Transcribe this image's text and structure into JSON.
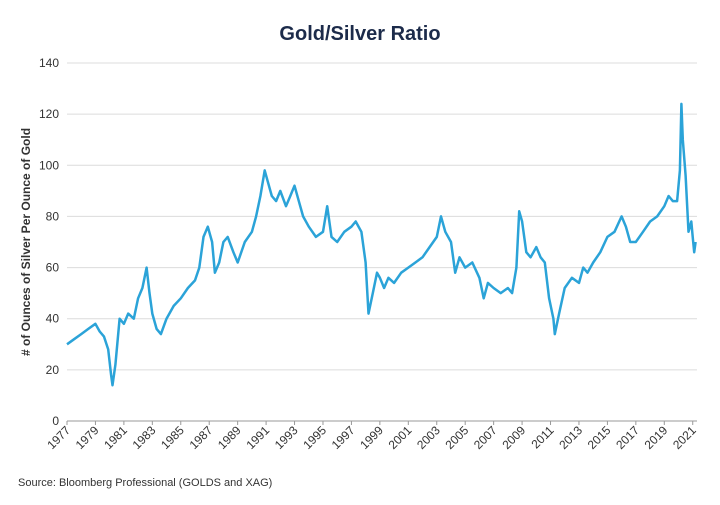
{
  "chart_data": {
    "type": "line",
    "title": "Gold/Silver Ratio",
    "y_label": "# of Ounces of Silver Per Ounce of Gold",
    "source": "Source: Bloomberg Professional (GOLDS and XAG)",
    "xlim": [
      1977,
      2021.3
    ],
    "xticks": [
      1977,
      1979,
      1981,
      1983,
      1985,
      1987,
      1989,
      1991,
      1993,
      1995,
      1997,
      1999,
      2001,
      2003,
      2005,
      2007,
      2009,
      2011,
      2013,
      2015,
      2017,
      2019,
      2021
    ],
    "ylim": [
      0,
      140
    ],
    "yticks": [
      0,
      20,
      40,
      60,
      80,
      100,
      120,
      140
    ],
    "grid": true,
    "series": [
      {
        "name": "Gold/Silver Ratio",
        "color": "#2ba3d8",
        "x": [
          1977.0,
          1977.5,
          1978.0,
          1978.5,
          1979.0,
          1979.3,
          1979.6,
          1979.9,
          1980.1,
          1980.2,
          1980.4,
          1980.7,
          1981.0,
          1981.3,
          1981.7,
          1982.0,
          1982.3,
          1982.6,
          1982.8,
          1983.0,
          1983.3,
          1983.6,
          1984.0,
          1984.5,
          1985.0,
          1985.5,
          1986.0,
          1986.3,
          1986.6,
          1986.9,
          1987.2,
          1987.4,
          1987.7,
          1988.0,
          1988.3,
          1988.7,
          1989.0,
          1989.5,
          1990.0,
          1990.3,
          1990.6,
          1990.9,
          1991.1,
          1991.4,
          1991.7,
          1992.0,
          1992.4,
          1992.7,
          1993.0,
          1993.3,
          1993.6,
          1994.0,
          1994.5,
          1995.0,
          1995.3,
          1995.6,
          1996.0,
          1996.5,
          1997.0,
          1997.3,
          1997.7,
          1998.0,
          1998.2,
          1998.5,
          1998.8,
          1999.0,
          1999.3,
          1999.6,
          2000.0,
          2000.5,
          2001.0,
          2001.5,
          2002.0,
          2002.5,
          2003.0,
          2003.3,
          2003.6,
          2004.0,
          2004.3,
          2004.6,
          2005.0,
          2005.5,
          2006.0,
          2006.3,
          2006.6,
          2007.0,
          2007.5,
          2008.0,
          2008.3,
          2008.6,
          2008.8,
          2009.0,
          2009.3,
          2009.6,
          2010.0,
          2010.3,
          2010.6,
          2010.9,
          2011.2,
          2011.3,
          2011.6,
          2012.0,
          2012.5,
          2013.0,
          2013.3,
          2013.6,
          2014.0,
          2014.5,
          2015.0,
          2015.5,
          2016.0,
          2016.3,
          2016.6,
          2017.0,
          2017.5,
          2018.0,
          2018.5,
          2019.0,
          2019.3,
          2019.6,
          2019.9,
          2020.1,
          2020.2,
          2020.3,
          2020.5,
          2020.7,
          2020.9,
          2021.0,
          2021.1,
          2021.2
        ],
        "values": [
          30,
          32,
          34,
          36,
          38,
          35,
          33,
          28,
          18,
          14,
          22,
          40,
          38,
          42,
          40,
          48,
          52,
          60,
          50,
          42,
          36,
          34,
          40,
          45,
          48,
          52,
          55,
          60,
          72,
          76,
          70,
          58,
          62,
          70,
          72,
          66,
          62,
          70,
          74,
          80,
          88,
          98,
          94,
          88,
          86,
          90,
          84,
          88,
          92,
          86,
          80,
          76,
          72,
          74,
          84,
          72,
          70,
          74,
          76,
          78,
          74,
          62,
          42,
          50,
          58,
          56,
          52,
          56,
          54,
          58,
          60,
          62,
          64,
          68,
          72,
          80,
          74,
          70,
          58,
          64,
          60,
          62,
          56,
          48,
          54,
          52,
          50,
          52,
          50,
          60,
          82,
          78,
          66,
          64,
          68,
          64,
          62,
          48,
          40,
          34,
          42,
          52,
          56,
          54,
          60,
          58,
          62,
          66,
          72,
          74,
          80,
          76,
          70,
          70,
          74,
          78,
          80,
          84,
          88,
          86,
          86,
          98,
          124,
          110,
          96,
          74,
          78,
          72,
          66,
          70
        ]
      }
    ]
  }
}
